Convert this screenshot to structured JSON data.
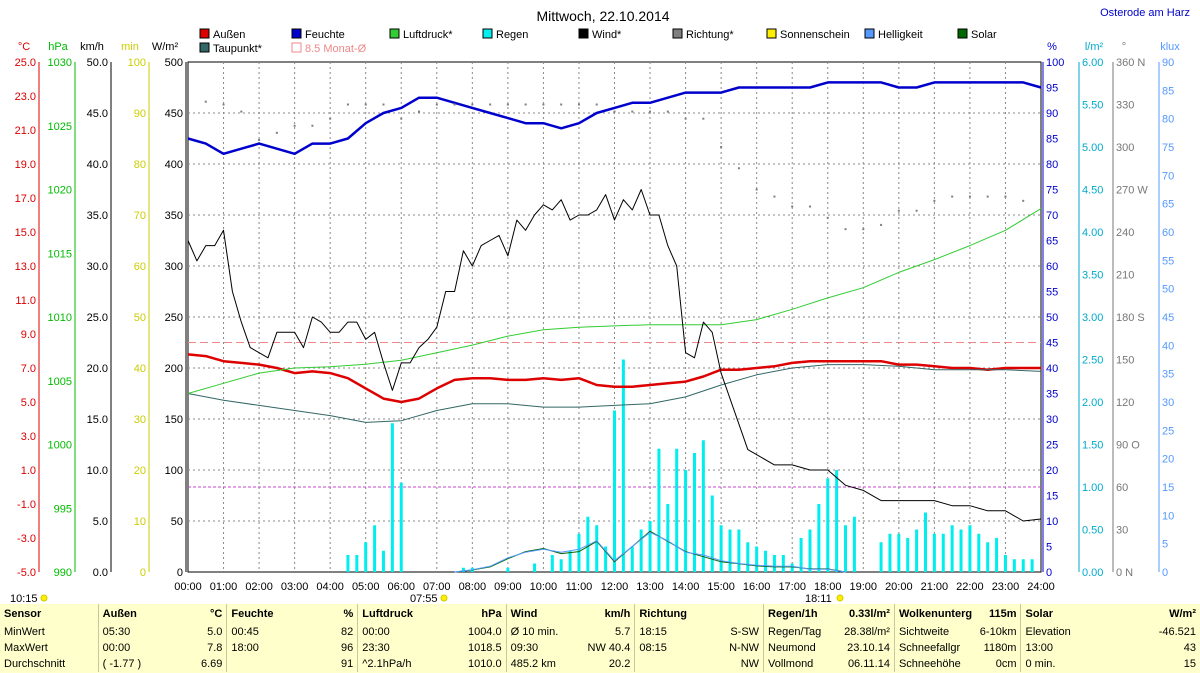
{
  "header": {
    "title": "Mittwoch, 22.10.2014",
    "location": "Osterode am Harz"
  },
  "left_axes": {
    "temp": {
      "unit": "°C",
      "color": "#dd0000",
      "ticks": [
        "25.0",
        "23.0",
        "21.0",
        "19.0",
        "17.0",
        "15.0",
        "13.0",
        "11.0",
        "9.0",
        "7.0",
        "5.0",
        "3.0",
        "1.0",
        "-1.0",
        "-3.0",
        "-5.0"
      ]
    },
    "press": {
      "unit": "hPa",
      "color": "#00bb00",
      "ticks": [
        "1030",
        "1025",
        "1020",
        "1015",
        "1010",
        "1005",
        "1000",
        "995",
        "990"
      ]
    },
    "wind": {
      "unit": "km/h",
      "color": "#000000",
      "ticks": [
        "50.0",
        "45.0",
        "40.0",
        "35.0",
        "30.0",
        "25.0",
        "20.0",
        "15.0",
        "10.0",
        "5.0",
        "0.0"
      ]
    },
    "min": {
      "unit": "min",
      "color": "#cccc00",
      "ticks": [
        "100",
        "90",
        "80",
        "70",
        "60",
        "50",
        "40",
        "30",
        "20",
        "10",
        "0"
      ]
    },
    "rad": {
      "unit": "W/m²",
      "color": "#000000",
      "ticks": [
        "500",
        "450",
        "400",
        "350",
        "300",
        "250",
        "200",
        "150",
        "100",
        "50",
        "0"
      ]
    }
  },
  "right_axes": {
    "hum": {
      "unit": "%",
      "color": "#0000cc",
      "ticks": [
        "100",
        "95",
        "90",
        "85",
        "80",
        "75",
        "70",
        "65",
        "60",
        "55",
        "50",
        "45",
        "40",
        "35",
        "30",
        "25",
        "20",
        "15",
        "10",
        "5",
        "0"
      ]
    },
    "rain": {
      "unit": "l/m²",
      "color": "#00aacc",
      "ticks": [
        "6.00",
        "5.50",
        "5.00",
        "4.50",
        "4.00",
        "3.50",
        "3.00",
        "2.50",
        "2.00",
        "1.50",
        "1.00",
        "0.50",
        "0.00"
      ]
    },
    "dir": {
      "unit": "°",
      "color": "#777777",
      "ticks": [
        "360 N",
        "330",
        "300",
        "270 W",
        "240",
        "210",
        "180 S",
        "150",
        "120",
        "90 O",
        "60",
        "30",
        "0 N"
      ]
    },
    "klux": {
      "unit": "klux",
      "color": "#5599ff",
      "ticks": [
        "90",
        "85",
        "80",
        "75",
        "70",
        "65",
        "60",
        "55",
        "50",
        "45",
        "40",
        "35",
        "30",
        "25",
        "20",
        "15",
        "10",
        "5",
        "0"
      ]
    }
  },
  "x_ticks": [
    "00:00",
    "01:00",
    "02:00",
    "03:00",
    "04:00",
    "05:00",
    "06:00",
    "07:00",
    "08:00",
    "09:00",
    "10:00",
    "11:00",
    "12:00",
    "13:00",
    "14:00",
    "15:00",
    "16:00",
    "17:00",
    "18:00",
    "19:00",
    "20:00",
    "21:00",
    "22:00",
    "23:00",
    "24:00"
  ],
  "legend": [
    {
      "label": "Außen",
      "color": "#dd0000"
    },
    {
      "label": "Feuchte",
      "color": "#0000cc"
    },
    {
      "label": "Luftdruck*",
      "color": "#33cc33"
    },
    {
      "label": "Regen",
      "color": "#00eeee"
    },
    {
      "label": "Wind*",
      "color": "#000000"
    },
    {
      "label": "Richtung*",
      "color": "#808080"
    },
    {
      "label": "Sonnenschein",
      "color": "#ffee00"
    },
    {
      "label": "Helligkeit",
      "color": "#5599ff"
    },
    {
      "label": "Solar",
      "color": "#006600"
    },
    {
      "label": "Taupunkt*",
      "color": "#336666"
    },
    {
      "label": "8.5 Monat-Ø",
      "color": "#ee8888"
    }
  ],
  "sun": {
    "rise": "07:55",
    "set": "18:11",
    "clock": "10:15"
  },
  "chart_data": {
    "type": "line",
    "title": "Mittwoch, 22.10.2014",
    "x_unit": "hour of day",
    "xlim": [
      0,
      24
    ],
    "series": [
      {
        "name": "Außen",
        "unit": "°C",
        "axis": "temp",
        "ylim": [
          -5,
          25
        ],
        "x": [
          0,
          0.5,
          1,
          1.5,
          2,
          2.5,
          3,
          3.5,
          4,
          4.5,
          5,
          5.5,
          6,
          6.5,
          7,
          7.5,
          8,
          8.5,
          9,
          9.5,
          10,
          10.5,
          11,
          11.5,
          12,
          12.5,
          13,
          13.5,
          14,
          14.5,
          15,
          15.5,
          16,
          16.5,
          17,
          17.5,
          18,
          18.5,
          19,
          19.5,
          20,
          20.5,
          21,
          21.5,
          22,
          22.5,
          23,
          23.5,
          24
        ],
        "y": [
          7.8,
          7.7,
          7.4,
          7.3,
          7.2,
          7.0,
          6.7,
          6.8,
          6.7,
          6.4,
          5.8,
          5.2,
          5.0,
          5.2,
          5.8,
          6.3,
          6.4,
          6.4,
          6.3,
          6.3,
          6.4,
          6.3,
          6.4,
          6.0,
          5.9,
          5.9,
          6.0,
          6.1,
          6.2,
          6.5,
          6.9,
          6.9,
          7.0,
          7.1,
          7.3,
          7.4,
          7.4,
          7.4,
          7.4,
          7.4,
          7.2,
          7.2,
          7.1,
          7.0,
          7.0,
          6.9,
          7.0,
          7.0,
          7.0
        ]
      },
      {
        "name": "Taupunkt*",
        "unit": "°C",
        "axis": "temp",
        "ylim": [
          -5,
          25
        ],
        "x": [
          0,
          1,
          2,
          3,
          4,
          5,
          6,
          7,
          8,
          9,
          10,
          11,
          12,
          13,
          14,
          15,
          16,
          17,
          18,
          19,
          20,
          21,
          22,
          23,
          24
        ],
        "y": [
          5.5,
          5.1,
          4.8,
          4.5,
          4.2,
          3.8,
          3.9,
          4.5,
          4.9,
          4.9,
          4.7,
          4.7,
          4.8,
          4.9,
          5.3,
          6.0,
          6.6,
          7.0,
          7.2,
          7.2,
          7.1,
          6.9,
          6.9,
          6.9,
          6.8
        ]
      },
      {
        "name": "Feuchte",
        "unit": "%",
        "axis": "hum",
        "ylim": [
          0,
          100
        ],
        "x": [
          0,
          0.5,
          1,
          1.5,
          2,
          2.5,
          3,
          3.5,
          4,
          4.5,
          5,
          5.5,
          6,
          6.5,
          7,
          7.5,
          8,
          8.5,
          9,
          9.5,
          10,
          10.5,
          11,
          11.5,
          12,
          12.5,
          13,
          13.5,
          14,
          14.5,
          15,
          15.5,
          16,
          16.5,
          17,
          17.5,
          18,
          18.5,
          19,
          19.5,
          20,
          20.5,
          21,
          21.5,
          22,
          22.5,
          23,
          23.5,
          24
        ],
        "y": [
          85,
          84,
          82,
          83,
          84,
          83,
          82,
          84,
          84,
          85,
          88,
          90,
          91,
          93,
          93,
          92,
          91,
          90,
          89,
          88,
          88,
          87,
          88,
          90,
          91,
          92,
          92,
          93,
          94,
          94,
          94,
          95,
          95,
          95,
          95,
          95,
          96,
          96,
          96,
          96,
          95,
          95,
          96,
          96,
          96,
          96,
          96,
          96,
          95
        ]
      },
      {
        "name": "Luftdruck*",
        "unit": "hPa",
        "axis": "press",
        "ylim": [
          990,
          1030
        ],
        "x": [
          0,
          1,
          2,
          3,
          4,
          5,
          6,
          7,
          8,
          9,
          10,
          11,
          12,
          13,
          14,
          15,
          16,
          17,
          18,
          19,
          20,
          21,
          22,
          23,
          24
        ],
        "y": [
          1004.0,
          1004.8,
          1005.6,
          1006.0,
          1006.1,
          1006.3,
          1006.6,
          1007.2,
          1007.8,
          1008.5,
          1009.0,
          1009.2,
          1009.3,
          1009.4,
          1009.4,
          1009.4,
          1009.8,
          1010.6,
          1011.5,
          1012.3,
          1013.5,
          1014.5,
          1015.6,
          1016.8,
          1018.5
        ]
      },
      {
        "name": "Wind*",
        "unit": "km/h",
        "axis": "wind",
        "ylim": [
          0,
          50
        ],
        "x": [
          0,
          0.25,
          0.5,
          0.75,
          1,
          1.25,
          1.5,
          1.75,
          2,
          2.25,
          2.5,
          2.75,
          3,
          3.25,
          3.5,
          3.75,
          4,
          4.25,
          4.5,
          4.75,
          5,
          5.25,
          5.5,
          5.75,
          6,
          6.25,
          6.5,
          6.75,
          7,
          7.25,
          7.5,
          7.75,
          8,
          8.25,
          8.5,
          8.75,
          9,
          9.25,
          9.5,
          9.75,
          10,
          10.25,
          10.5,
          10.75,
          11,
          11.25,
          11.5,
          11.75,
          12,
          12.25,
          12.5,
          12.75,
          13,
          13.25,
          13.5,
          13.75,
          14,
          14.25,
          14.5,
          14.75,
          15,
          15.25,
          15.5,
          15.75,
          16,
          16.5,
          17,
          17.5,
          18,
          18.5,
          19,
          19.5,
          20,
          20.5,
          21,
          21.5,
          22,
          22.5,
          23,
          23.5,
          24
        ],
        "y": [
          32.5,
          30.5,
          32.0,
          32.0,
          33.5,
          27.5,
          24.5,
          22.0,
          21.5,
          21.0,
          23.5,
          23.5,
          23.5,
          22.0,
          25.0,
          24.5,
          23.5,
          23.5,
          24.5,
          24.5,
          22.8,
          23.5,
          20.5,
          17.8,
          20.5,
          20.5,
          22.0,
          22.8,
          24.0,
          27.5,
          27.5,
          31.5,
          30.0,
          32.0,
          32.5,
          33.0,
          31.0,
          34.5,
          33.5,
          35.0,
          36.0,
          35.5,
          36.5,
          34.5,
          35.0,
          35.0,
          35.5,
          37.0,
          34.5,
          36.5,
          35.5,
          37.5,
          35.0,
          35.0,
          32.0,
          30.0,
          21.5,
          21.0,
          24.5,
          23.5,
          19.5,
          17.0,
          14.5,
          12.0,
          11.5,
          10.5,
          10.5,
          10.0,
          10.0,
          8.5,
          8.0,
          7.0,
          7.0,
          7.0,
          7.0,
          6.5,
          6.5,
          6.0,
          6.0,
          5.0,
          5.2
        ]
      },
      {
        "name": "Richtung*",
        "unit": "°",
        "axis": "dir",
        "ylim": [
          0,
          360
        ],
        "x": [
          0,
          0.5,
          1,
          1.5,
          2,
          2.5,
          3,
          3.5,
          4,
          4.5,
          5,
          5.5,
          6,
          6.5,
          7,
          7.5,
          8,
          8.5,
          9,
          9.5,
          10,
          10.5,
          11,
          11.5,
          12,
          12.5,
          13,
          13.5,
          14,
          14.5,
          15,
          15.5,
          16,
          16.5,
          17,
          17.5,
          18,
          18.5,
          19,
          19.5,
          20,
          20.5,
          21,
          21.5,
          22,
          22.5,
          23,
          23.5,
          24
        ],
        "y": [
          332,
          332,
          330,
          325,
          305,
          310,
          315,
          315,
          320,
          330,
          330,
          330,
          320,
          325,
          330,
          330,
          330,
          330,
          330,
          330,
          330,
          330,
          330,
          330,
          325,
          325,
          325,
          325,
          320,
          320,
          300,
          285,
          270,
          265,
          258,
          258,
          250,
          242,
          242,
          245,
          255,
          255,
          262,
          265,
          265,
          265,
          265,
          262,
          258
        ]
      },
      {
        "name": "Regen",
        "unit": "l/m²",
        "axis": "rain",
        "ylim": [
          0,
          6
        ],
        "x": [
          4.5,
          4.75,
          5,
          5.25,
          5.5,
          5.75,
          6,
          7.75,
          8,
          9,
          9.75,
          10.25,
          10.5,
          10.75,
          11,
          11.25,
          11.5,
          11.75,
          12,
          12.25,
          12.5,
          12.75,
          13,
          13.25,
          13.5,
          13.75,
          14,
          14.25,
          14.5,
          14.75,
          15,
          15.25,
          15.5,
          15.75,
          16,
          16.25,
          16.5,
          16.75,
          17,
          17.25,
          17.5,
          17.75,
          18,
          18.25,
          18.5,
          18.75,
          19.5,
          19.75,
          20,
          20.25,
          20.5,
          20.75,
          21,
          21.25,
          21.5,
          21.75,
          22,
          22.25,
          22.5,
          22.75,
          23,
          23.25,
          23.5,
          23.75
        ],
        "y": [
          0.2,
          0.2,
          0.35,
          0.55,
          0.25,
          1.75,
          1.05,
          0.05,
          0.05,
          0.05,
          0.1,
          0.2,
          0.15,
          0.25,
          0.45,
          0.65,
          0.55,
          0.3,
          1.9,
          2.5,
          0.3,
          0.5,
          0.6,
          1.45,
          0.8,
          1.45,
          1.2,
          1.4,
          1.55,
          0.9,
          0.55,
          0.5,
          0.5,
          0.35,
          0.3,
          0.25,
          0.2,
          0.2,
          0.1,
          0.4,
          0.5,
          0.8,
          1.1,
          1.2,
          0.55,
          0.65,
          0.35,
          0.45,
          0.45,
          0.4,
          0.5,
          0.7,
          0.45,
          0.45,
          0.55,
          0.5,
          0.55,
          0.45,
          0.35,
          0.4,
          0.2,
          0.15,
          0.15,
          0.15
        ]
      },
      {
        "name": "Solar",
        "unit": "W/m²",
        "axis": "rad",
        "ylim": [
          0,
          500
        ],
        "x": [
          7.5,
          8,
          8.5,
          9,
          9.5,
          10,
          10.5,
          11,
          11.5,
          12,
          12.5,
          13,
          13.5,
          14,
          14.5,
          15,
          15.5,
          16,
          16.5,
          17,
          17.5,
          18,
          18.5
        ],
        "y": [
          0,
          2,
          5,
          13,
          20,
          23,
          18,
          20,
          30,
          10,
          25,
          40,
          30,
          20,
          15,
          10,
          8,
          6,
          5,
          5,
          3,
          3,
          0
        ]
      },
      {
        "name": "Helligkeit",
        "unit": "klux",
        "axis": "klux",
        "ylim": [
          0,
          90
        ],
        "x": [
          7.5,
          8,
          8.5,
          9,
          9.5,
          10,
          10.5,
          11,
          11.5,
          12,
          12.5,
          13,
          13.5,
          14,
          14.5,
          15,
          15.5,
          16,
          16.5,
          17,
          17.5,
          18,
          18.5
        ],
        "y": [
          0,
          0.4,
          1,
          2.5,
          3.5,
          4,
          3.5,
          4,
          5.5,
          2,
          4.5,
          7,
          5.5,
          3.5,
          3,
          2,
          1.5,
          1.2,
          1,
          1,
          0.5,
          0.5,
          0
        ]
      }
    ],
    "reference_lines": [
      {
        "name": "8.5 Monat-Ø",
        "value": 8.5,
        "axis": "temp",
        "color": "#ee8888"
      },
      {
        "value": 1.0,
        "axis": "rain",
        "color": "#cc44cc"
      }
    ]
  },
  "stats": {
    "headers": [
      "Sensor",
      "Außen",
      "°C",
      "Feuchte",
      "%",
      "Luftdruck",
      "hPa",
      "Wind",
      "km/h",
      "Richtung",
      "",
      "Regen/1h",
      "0.33l/m²",
      "Wolkenunterg",
      "115m",
      "Solar",
      "W/m²"
    ],
    "rows": [
      [
        "MinWert",
        "05:30",
        "5.0",
        "00:45",
        "82",
        "00:00",
        "1004.0",
        "Ø 10 min.",
        "5.7",
        "18:15",
        "S-SW",
        "Regen/Tag",
        "28.38l/m²",
        "Sichtweite",
        "6-10km",
        "Elevation",
        "-46.521"
      ],
      [
        "MaxWert",
        "00:00",
        "7.8",
        "18:00",
        "96",
        "23:30",
        "1018.5",
        "09:30",
        "NW 40.4",
        "08:15",
        "N-NW",
        "Neumond",
        "23.10.14",
        "Schneefallgr",
        "1180m",
        "13:00",
        "43"
      ],
      [
        "Durchschnitt",
        "( -1.77 )",
        "6.69",
        "",
        "91",
        "^2.1hPa/h",
        "1010.0",
        "485.2 km",
        "20.2",
        "",
        "NW",
        "Vollmond",
        "06.11.14",
        "Schneehöhe",
        "0cm",
        "0 min.",
        "15"
      ]
    ]
  }
}
